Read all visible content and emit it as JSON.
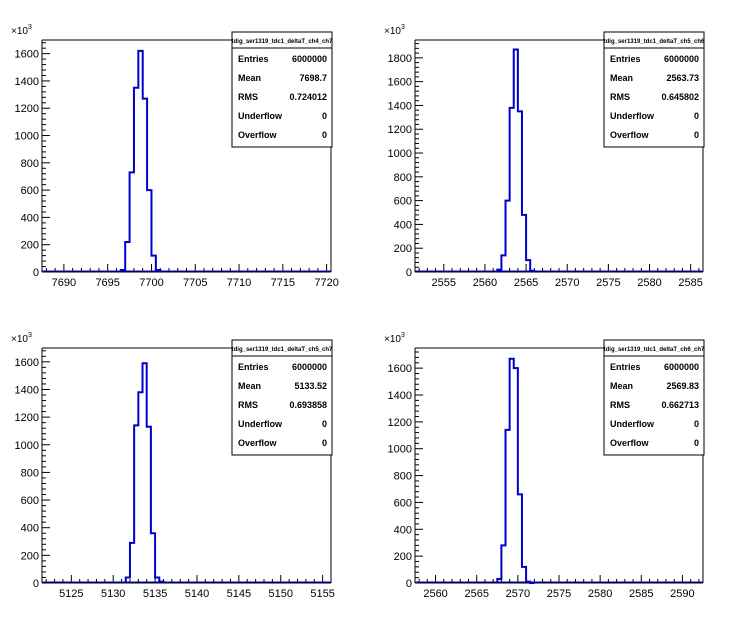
{
  "chart_data": [
    {
      "type": "histogram",
      "title": "tdig_ser1319_tdc1_deltaT_ch4_ch7",
      "y_exponent_label": "×10",
      "y_exponent_power": "3",
      "xlim": [
        7687.5,
        7720.5
      ],
      "ylim": [
        0,
        1700
      ],
      "xticks": [
        7690,
        7695,
        7700,
        7705,
        7710,
        7715,
        7720
      ],
      "yticks": [
        0,
        200,
        400,
        600,
        800,
        1000,
        1200,
        1400,
        1600
      ],
      "bins": [
        7696.5,
        7697.0,
        7697.5,
        7698.0,
        7698.5,
        7699.0,
        7699.5,
        7700.0,
        7700.5
      ],
      "values": [
        15,
        220,
        730,
        1350,
        1620,
        1270,
        600,
        120,
        15
      ],
      "stats": [
        {
          "label": "Entries",
          "value": "6000000"
        },
        {
          "label": "Mean",
          "value": "7698.7"
        },
        {
          "label": "RMS",
          "value": "0.724012"
        },
        {
          "label": "Underflow",
          "value": "0"
        },
        {
          "label": "Overflow",
          "value": "0"
        }
      ]
    },
    {
      "type": "histogram",
      "title": "tdig_ser1319_tdc1_deltaT_ch5_ch6",
      "y_exponent_label": "×10",
      "y_exponent_power": "3",
      "xlim": [
        2551.5,
        2586.5
      ],
      "ylim": [
        0,
        1950
      ],
      "xticks": [
        2555,
        2560,
        2565,
        2570,
        2575,
        2580,
        2585
      ],
      "yticks": [
        0,
        200,
        400,
        600,
        800,
        1000,
        1200,
        1400,
        1600,
        1800
      ],
      "bins": [
        2561.5,
        2562.0,
        2562.5,
        2563.0,
        2563.5,
        2564.0,
        2564.5,
        2565.0,
        2565.5
      ],
      "values": [
        20,
        140,
        600,
        1380,
        1870,
        1350,
        480,
        100,
        10
      ],
      "stats": [
        {
          "label": "Entries",
          "value": "6000000"
        },
        {
          "label": "Mean",
          "value": "2563.73"
        },
        {
          "label": "RMS",
          "value": "0.645802"
        },
        {
          "label": "Underflow",
          "value": "0"
        },
        {
          "label": "Overflow",
          "value": "0"
        }
      ]
    },
    {
      "type": "histogram",
      "title": "tdig_ser1319_tdc1_deltaT_ch5_ch7",
      "y_exponent_label": "×10",
      "y_exponent_power": "3",
      "xlim": [
        5121.5,
        5156.0
      ],
      "ylim": [
        0,
        1700
      ],
      "xticks": [
        5125,
        5130,
        5135,
        5140,
        5145,
        5150,
        5155
      ],
      "yticks": [
        0,
        200,
        400,
        600,
        800,
        1000,
        1200,
        1400,
        1600
      ],
      "bins": [
        5131.5,
        5132.0,
        5132.5,
        5133.0,
        5133.5,
        5134.0,
        5134.5,
        5135.0,
        5135.5
      ],
      "values": [
        40,
        290,
        1140,
        1380,
        1590,
        1130,
        360,
        40,
        10
      ],
      "stats": [
        {
          "label": "Entries",
          "value": "6000000"
        },
        {
          "label": "Mean",
          "value": "5133.52"
        },
        {
          "label": "RMS",
          "value": "0.693858"
        },
        {
          "label": "Underflow",
          "value": "0"
        },
        {
          "label": "Overflow",
          "value": "0"
        }
      ]
    },
    {
      "type": "histogram",
      "title": "tdig_ser1319_tdc1_deltaT_ch6_ch7",
      "y_exponent_label": "×10",
      "y_exponent_power": "3",
      "xlim": [
        2557.5,
        2592.5
      ],
      "ylim": [
        0,
        1750
      ],
      "xticks": [
        2560,
        2565,
        2570,
        2575,
        2580,
        2585,
        2590
      ],
      "yticks": [
        0,
        200,
        400,
        600,
        800,
        1000,
        1200,
        1400,
        1600
      ],
      "bins": [
        2567.5,
        2568.0,
        2568.5,
        2569.0,
        2569.5,
        2570.0,
        2570.5,
        2571.0,
        2571.5
      ],
      "values": [
        30,
        280,
        1140,
        1670,
        1600,
        660,
        120,
        10,
        0
      ],
      "stats": [
        {
          "label": "Entries",
          "value": "6000000"
        },
        {
          "label": "Mean",
          "value": "2569.83"
        },
        {
          "label": "RMS",
          "value": "0.662713"
        },
        {
          "label": "Underflow",
          "value": "0"
        },
        {
          "label": "Overflow",
          "value": "0"
        }
      ]
    }
  ],
  "colors": {
    "line": "#0000cc",
    "axis": "#000000",
    "frame": "#000000",
    "background": "#ffffff"
  }
}
